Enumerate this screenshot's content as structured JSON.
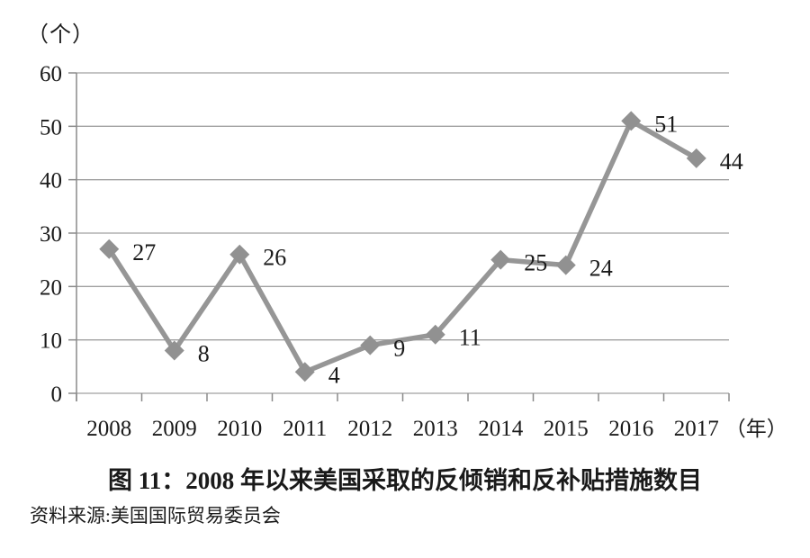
{
  "figure": {
    "unit_label": "（个）",
    "x_axis_unit": "（年）",
    "caption": "图 11：2008 年以来美国采取的反倾销和反补贴措施数目",
    "source": "资料来源:美国国际贸易委员会"
  },
  "chart_data": {
    "type": "line",
    "title": "图 11：2008 年以来美国采取的反倾销和反补贴措施数目",
    "ylabel": "（个）",
    "xlabel": "（年）",
    "categories": [
      "2008",
      "2009",
      "2010",
      "2011",
      "2012",
      "2013",
      "2014",
      "2015",
      "2016",
      "2017"
    ],
    "values": [
      27,
      8,
      26,
      4,
      9,
      11,
      25,
      24,
      51,
      44
    ],
    "ylim": [
      0,
      60
    ],
    "yticks": [
      0,
      10,
      20,
      30,
      40,
      50,
      60
    ],
    "grid": true,
    "legend_position": "none",
    "marker": "diamond",
    "data_labels": true,
    "colors": {
      "line": "#969696",
      "marker": "#919191",
      "grid": "#a0a0a0",
      "axis": "#8a8a8a",
      "text": "#1a1a1a"
    }
  }
}
